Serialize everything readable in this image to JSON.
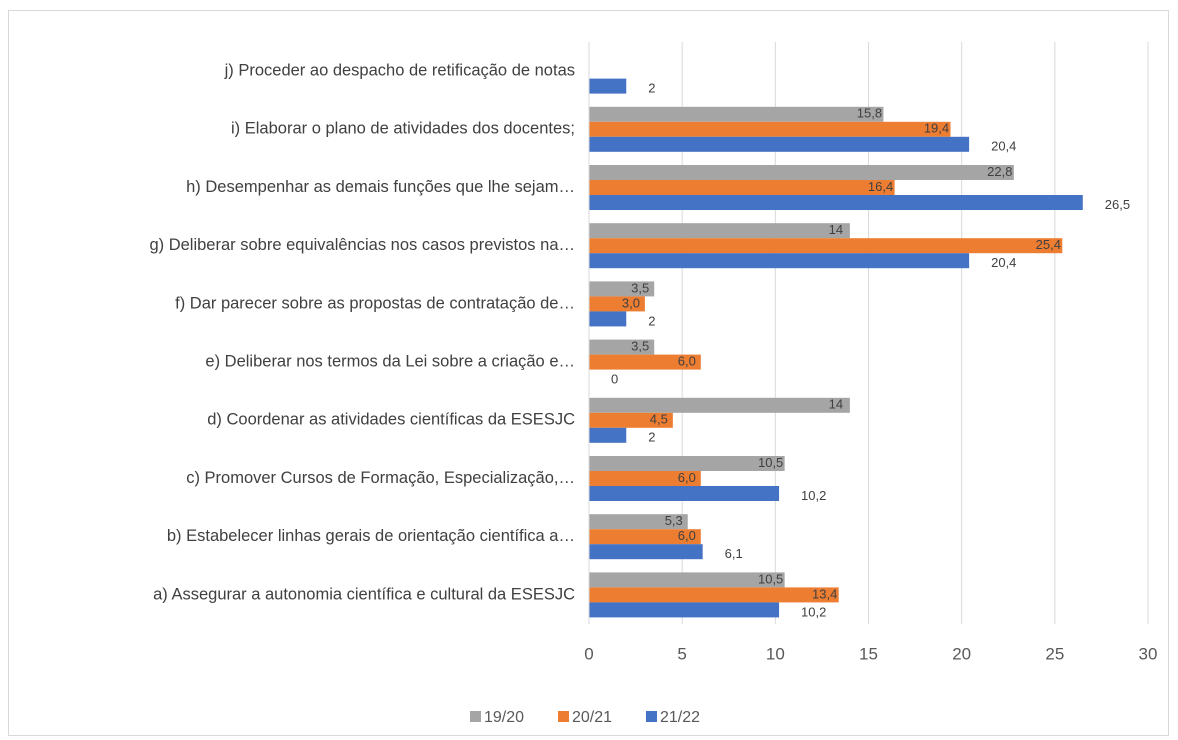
{
  "chart_data": {
    "type": "bar",
    "orientation": "horizontal",
    "categories": [
      "a) Assegurar a autonomia científica e cultural da ESESJC",
      "b) Estabelecer linhas gerais de orientação científica a…",
      "c) Promover Cursos de Formação, Especialização,…",
      "d) Coordenar as atividades científicas da ESESJC",
      "e) Deliberar nos termos da Lei sobre a criação e…",
      "f) Dar parecer sobre as propostas de contratação de…",
      "g) Deliberar sobre equivalências nos casos previstos na…",
      "h) Desempenhar as demais funções que lhe sejam…",
      "i) Elaborar o plano de atividades dos docentes;",
      "j) Proceder ao despacho de retificação de notas"
    ],
    "series": [
      {
        "name": "19/20",
        "color": "#a5a5a5",
        "values": [
          10.5,
          5.3,
          10.5,
          14,
          3.5,
          3.5,
          14,
          22.8,
          15.8,
          null
        ],
        "value_labels": [
          "10,5",
          "5,3",
          "10,5",
          "14",
          "3,5",
          "3,5",
          "14",
          "22,8",
          "15,8",
          null
        ]
      },
      {
        "name": "20/21",
        "color": "#ed7d31",
        "values": [
          13.4,
          6.0,
          6.0,
          4.5,
          6.0,
          3.0,
          25.4,
          16.4,
          19.4,
          null
        ],
        "value_labels": [
          "13,4",
          "6,0",
          "6,0",
          "4,5",
          "6,0",
          "3,0",
          "25,4",
          "16,4",
          "19,4",
          null
        ]
      },
      {
        "name": "21/22",
        "color": "#4472c4",
        "values": [
          10.2,
          6.1,
          10.2,
          2,
          0,
          2,
          20.4,
          26.5,
          20.4,
          2
        ],
        "value_labels": [
          "10,2",
          "6,1",
          "10,2",
          "2",
          "0",
          "2",
          "20,4",
          "26,5",
          "20,4",
          "2"
        ]
      }
    ],
    "xlim": [
      0,
      30
    ],
    "xticks": [
      0,
      5,
      10,
      15,
      20,
      25,
      30
    ],
    "grid": true,
    "legend": "bottom"
  }
}
